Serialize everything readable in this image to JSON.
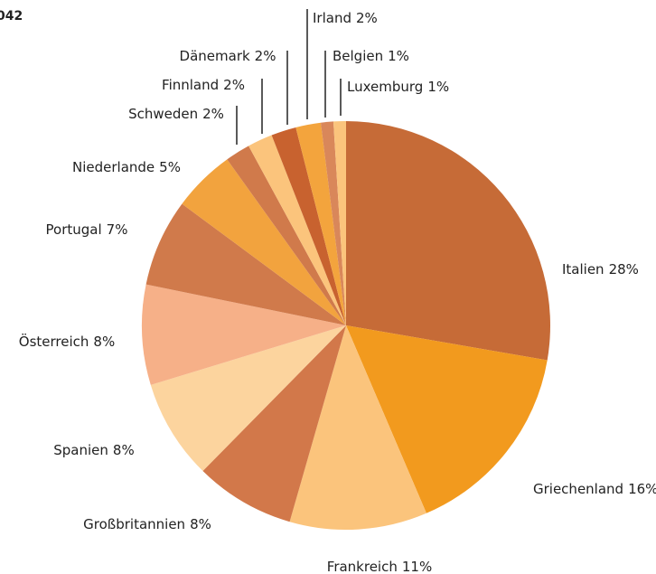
{
  "chart_data": {
    "type": "pie",
    "title": "042",
    "categories": [
      "Italien",
      "Griechenland",
      "Frankreich",
      "Großbritannien",
      "Spanien",
      "Österreich",
      "Portugal",
      "Niederlande",
      "Schweden",
      "Finnland",
      "Dänemark",
      "Irland",
      "Belgien",
      "Luxemburg"
    ],
    "values": [
      28,
      16,
      11,
      8,
      8,
      8,
      7,
      5,
      2,
      2,
      2,
      2,
      1,
      1
    ],
    "value_labels": [
      "28%",
      "16%",
      "11%",
      "8%",
      "8%",
      "8%",
      "7%",
      "5%",
      "2%",
      "2%",
      "2%",
      "2%",
      "1%",
      "1%"
    ],
    "colors": [
      "#c66b37",
      "#f29a1e",
      "#fbc47c",
      "#d2784a",
      "#fcd49e",
      "#f6b088",
      "#d07a4b",
      "#f2a33e",
      "#d07a4b",
      "#fbc47c",
      "#c8622f",
      "#f3a43d",
      "#d9875a",
      "#fbc47c"
    ]
  }
}
